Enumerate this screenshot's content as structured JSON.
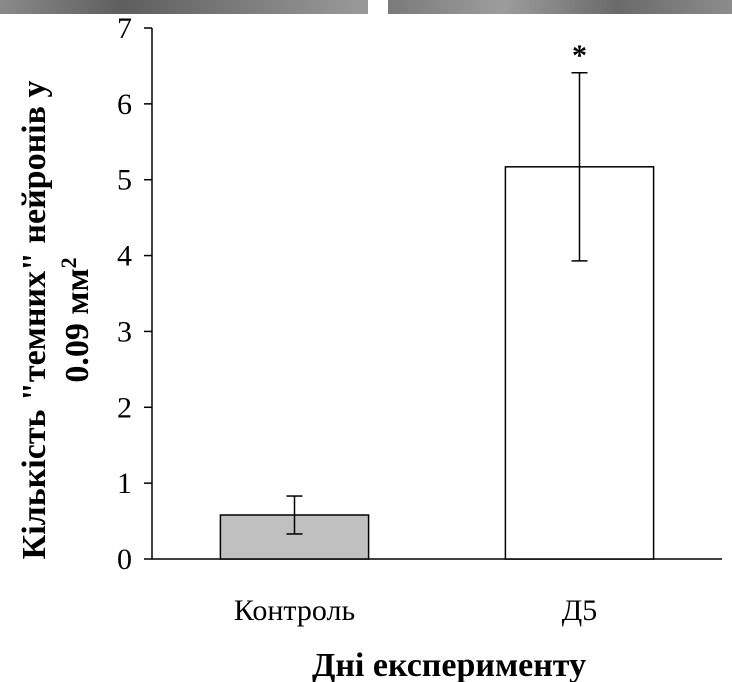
{
  "chart_data": {
    "type": "bar",
    "categories": [
      "Контроль",
      "Д5"
    ],
    "values": [
      0.58,
      5.17
    ],
    "error": [
      0.25,
      1.24
    ],
    "bar_colors": [
      "#c0c0c0",
      "#ffffff"
    ],
    "annotations": [
      "",
      "*"
    ],
    "ylim": [
      0,
      7
    ],
    "yticks": [
      "0",
      "1",
      "2",
      "3",
      "4",
      "5",
      "6",
      "7"
    ],
    "xlabel": "Дні експерименту",
    "ylabel_line1": "Кількість \"темних\" нейронів у",
    "ylabel_line2": "0.09 мм",
    "ylabel_sup": "2",
    "grid": false
  },
  "colors": {
    "axis": "#000000",
    "photo_strip": "#6f6f6f"
  }
}
